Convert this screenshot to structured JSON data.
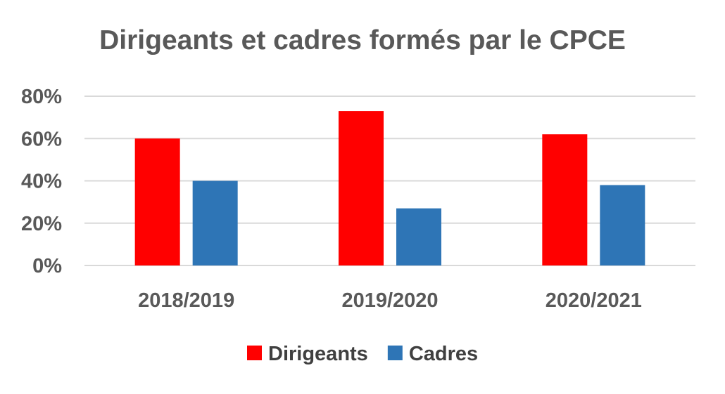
{
  "chart_data": {
    "type": "bar",
    "title": "Dirigeants et cadres formés par le CPCE",
    "categories": [
      "2018/2019",
      "2019/2020",
      "2020/2021"
    ],
    "series": [
      {
        "name": "Dirigeants",
        "values": [
          60,
          73,
          62
        ],
        "color": "#ff0000"
      },
      {
        "name": "Cadres",
        "values": [
          40,
          27,
          38
        ],
        "color": "#2e75b6"
      }
    ],
    "y_ticks": [
      "0%",
      "20%",
      "40%",
      "60%",
      "80%"
    ],
    "ylim": [
      0,
      80
    ],
    "grid": true,
    "legend_position": "bottom"
  }
}
